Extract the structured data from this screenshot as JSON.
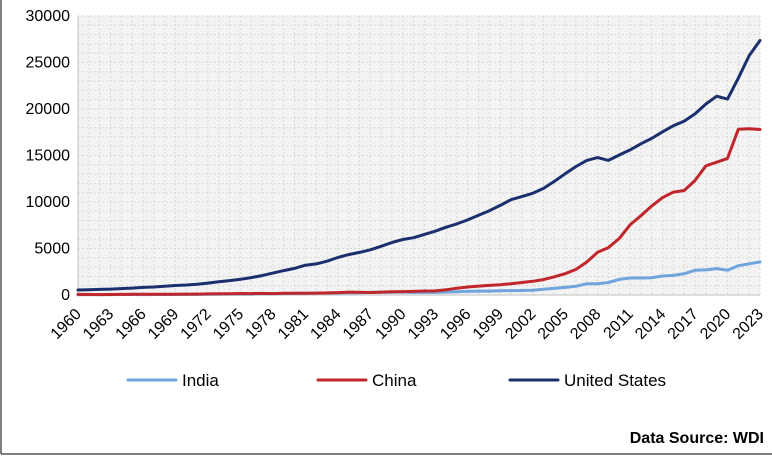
{
  "chart_data": {
    "type": "line",
    "title": "",
    "xlabel": "",
    "ylabel": "",
    "ylim": [
      0,
      30000
    ],
    "yticks": [
      0,
      5000,
      10000,
      15000,
      20000,
      25000,
      30000
    ],
    "xlim": [
      1960,
      2023
    ],
    "xticks": [
      1960,
      1963,
      1966,
      1969,
      1972,
      1975,
      1978,
      1981,
      1984,
      1987,
      1990,
      1993,
      1996,
      1999,
      2002,
      2005,
      2008,
      2011,
      2014,
      2017,
      2020,
      2023
    ],
    "grid": "on",
    "legend_placement": "bottom",
    "x": [
      1960,
      1961,
      1962,
      1963,
      1964,
      1965,
      1966,
      1967,
      1968,
      1969,
      1970,
      1971,
      1972,
      1973,
      1974,
      1975,
      1976,
      1977,
      1978,
      1979,
      1980,
      1981,
      1982,
      1983,
      1984,
      1985,
      1986,
      1987,
      1988,
      1989,
      1990,
      1991,
      1992,
      1993,
      1994,
      1995,
      1996,
      1997,
      1998,
      1999,
      2000,
      2001,
      2002,
      2003,
      2004,
      2005,
      2006,
      2007,
      2008,
      2009,
      2010,
      2011,
      2012,
      2013,
      2014,
      2015,
      2016,
      2017,
      2018,
      2019,
      2020,
      2021,
      2022,
      2023
    ],
    "series": [
      {
        "name": "India",
        "color": "#6fa4dc",
        "values": [
          37,
          39,
          42,
          48,
          56,
          59,
          46,
          50,
          53,
          58,
          62,
          67,
          71,
          85,
          99,
          98,
          102,
          121,
          137,
          153,
          186,
          193,
          201,
          218,
          212,
          232,
          248,
          279,
          296,
          296,
          321,
          270,
          288,
          279,
          327,
          360,
          392,
          415,
          421,
          458,
          468,
          485,
          515,
          608,
          709,
          820,
          940,
          1217,
          1199,
          1342,
          1675,
          1823,
          1828,
          1857,
          2039,
          2104,
          2295,
          2652,
          2702,
          2836,
          2672,
          3150,
          3353,
          3550
        ]
      },
      {
        "name": "China",
        "color": "#c0272d",
        "values": [
          60,
          50,
          47,
          51,
          60,
          70,
          76,
          73,
          71,
          80,
          93,
          100,
          114,
          138,
          144,
          163,
          154,
          175,
          150,
          178,
          191,
          196,
          205,
          231,
          260,
          309,
          301,
          273,
          312,
          348,
          361,
          383,
          427,
          445,
          564,
          734,
          863,
          962,
          1029,
          1094,
          1211,
          1339,
          1471,
          1660,
          1955,
          2286,
          2752,
          3552,
          4594,
          5102,
          6087,
          7552,
          8532,
          9571,
          10476,
          11062,
          11233,
          12310,
          13895,
          14280,
          14688,
          17820,
          17882,
          17795
        ]
      },
      {
        "name": "United States",
        "color": "#1b2f6e",
        "values": [
          543,
          563,
          605,
          639,
          686,
          744,
          815,
          862,
          943,
          1020,
          1073,
          1165,
          1280,
          1425,
          1545,
          1684,
          1873,
          2082,
          2352,
          2627,
          2857,
          3207,
          3343,
          3634,
          4037,
          4339,
          4579,
          4855,
          5236,
          5642,
          5963,
          6158,
          6520,
          6859,
          7287,
          7640,
          8073,
          8578,
          9063,
          9631,
          10251,
          10582,
          10936,
          11458,
          12214,
          13037,
          13816,
          14474,
          14770,
          14478,
          15049,
          15600,
          16254,
          16843,
          17551,
          18206,
          18695,
          19477,
          20533,
          21381,
          21060,
          23315,
          25744,
          27361
        ]
      }
    ],
    "source": "Data Source: WDI"
  }
}
